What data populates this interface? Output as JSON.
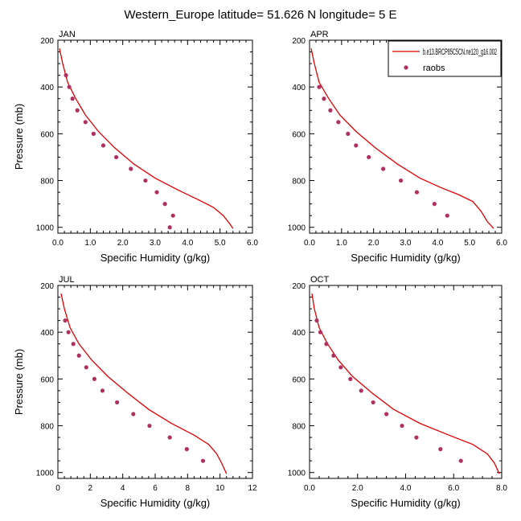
{
  "figure": {
    "title": "Western_Europe  latitude= 51.626 N longitude= 5 E"
  },
  "colors": {
    "model": "#e00000",
    "obs": "#b03060",
    "axis": "#000000"
  },
  "legend": {
    "location": "top-right of APR panel",
    "model_label": "b.e13.BRCP85C5CN.ne120_g16.002",
    "obs_label": "raobs"
  },
  "chart_data": [
    {
      "type": "line",
      "panel": "JAN",
      "title": "JAN",
      "xlabel": "Specific Humidity (g/kg)",
      "ylabel": "Pressure (mb)",
      "xlim": [
        0,
        6
      ],
      "ylim": [
        200,
        1025
      ],
      "y_reversed": true,
      "xticks": [
        "0.0",
        "1.0",
        "2.0",
        "3.0",
        "4.0",
        "5.0",
        "6.0"
      ],
      "yticks": [
        "200",
        "400",
        "600",
        "800",
        "1000"
      ],
      "series": [
        {
          "name": "b.e13.BRCP85C5CN.ne120_g16.002",
          "kind": "line",
          "x": [
            0.05,
            0.15,
            0.3,
            0.55,
            0.85,
            1.25,
            1.75,
            2.35,
            3.0,
            3.7,
            4.3,
            4.8,
            5.1,
            5.3,
            5.4
          ],
          "y": [
            235,
            300,
            380,
            450,
            520,
            590,
            660,
            730,
            790,
            840,
            880,
            915,
            950,
            985,
            1005
          ]
        },
        {
          "name": "raobs",
          "kind": "points",
          "x": [
            0.25,
            0.35,
            0.45,
            0.6,
            0.85,
            1.1,
            1.4,
            1.8,
            2.25,
            2.7,
            3.05,
            3.3,
            3.55,
            3.45
          ],
          "y": [
            350,
            400,
            450,
            500,
            550,
            600,
            650,
            700,
            750,
            800,
            850,
            900,
            950,
            1000
          ]
        }
      ]
    },
    {
      "type": "line",
      "panel": "APR",
      "title": "APR",
      "xlabel": "Specific Humidity (g/kg)",
      "ylabel": "Pressure (mb)",
      "xlim": [
        0,
        6
      ],
      "ylim": [
        200,
        1025
      ],
      "y_reversed": true,
      "xticks": [
        "0.0",
        "1.0",
        "2.0",
        "3.0",
        "4.0",
        "5.0",
        "6.0"
      ],
      "yticks": [
        "200",
        "400",
        "600",
        "800",
        "1000"
      ],
      "series": [
        {
          "name": "b.e13.BRCP85C5CN.ne120_g16.002",
          "kind": "line",
          "x": [
            0.05,
            0.15,
            0.3,
            0.6,
            0.95,
            1.45,
            2.05,
            2.75,
            3.45,
            4.1,
            4.65,
            5.1,
            5.35,
            5.55,
            5.75
          ],
          "y": [
            235,
            300,
            380,
            450,
            520,
            590,
            660,
            730,
            790,
            830,
            860,
            890,
            930,
            975,
            1005
          ]
        },
        {
          "name": "raobs",
          "kind": "points",
          "x": [
            0.3,
            0.45,
            0.65,
            0.9,
            1.2,
            1.45,
            1.85,
            2.3,
            2.85,
            3.35,
            3.9,
            4.3
          ],
          "y": [
            400,
            450,
            500,
            550,
            600,
            650,
            700,
            750,
            800,
            850,
            900,
            950
          ]
        }
      ]
    },
    {
      "type": "line",
      "panel": "JUL",
      "title": "JUL",
      "xlabel": "Specific Humidity (g/kg)",
      "ylabel": "Pressure (mb)",
      "xlim": [
        0,
        12
      ],
      "ylim": [
        200,
        1025
      ],
      "y_reversed": true,
      "xticks": [
        "0",
        "2",
        "4",
        "6",
        "8",
        "10",
        "12"
      ],
      "yticks": [
        "200",
        "400",
        "600",
        "800",
        "1000"
      ],
      "series": [
        {
          "name": "b.e13.BRCP85C5CN.ne120_g16.002",
          "kind": "line",
          "x": [
            0.2,
            0.4,
            0.75,
            1.3,
            2.1,
            3.1,
            4.3,
            5.6,
            7.0,
            8.4,
            9.3,
            9.8,
            10.1,
            10.4
          ],
          "y": [
            235,
            300,
            380,
            450,
            520,
            590,
            660,
            730,
            790,
            840,
            880,
            920,
            960,
            1005
          ]
        },
        {
          "name": "raobs",
          "kind": "points",
          "x": [
            0.45,
            0.65,
            0.95,
            1.3,
            1.75,
            2.25,
            2.75,
            3.65,
            4.65,
            5.65,
            6.9,
            7.95,
            8.95
          ],
          "y": [
            350,
            400,
            450,
            500,
            550,
            600,
            650,
            700,
            750,
            800,
            850,
            900,
            950
          ]
        }
      ]
    },
    {
      "type": "line",
      "panel": "OCT",
      "title": "OCT",
      "xlabel": "Specific Humidity (g/kg)",
      "ylabel": "Pressure (mb)",
      "xlim": [
        0,
        8
      ],
      "ylim": [
        200,
        1025
      ],
      "y_reversed": true,
      "xticks": [
        "0.0",
        "2.0",
        "4.0",
        "6.0",
        "8.0"
      ],
      "yticks": [
        "200",
        "400",
        "600",
        "800",
        "1000"
      ],
      "series": [
        {
          "name": "b.e13.BRCP85C5CN.ne120_g16.002",
          "kind": "line",
          "x": [
            0.1,
            0.2,
            0.4,
            0.75,
            1.2,
            1.8,
            2.6,
            3.5,
            4.6,
            5.8,
            6.8,
            7.4,
            7.7,
            7.9
          ],
          "y": [
            235,
            300,
            380,
            450,
            520,
            590,
            660,
            730,
            790,
            840,
            880,
            920,
            960,
            1005
          ]
        },
        {
          "name": "raobs",
          "kind": "points",
          "x": [
            0.3,
            0.45,
            0.7,
            1.0,
            1.3,
            1.7,
            2.15,
            2.65,
            3.2,
            3.85,
            4.45,
            5.45,
            6.3
          ],
          "y": [
            350,
            400,
            450,
            500,
            550,
            600,
            650,
            700,
            750,
            800,
            850,
            900,
            950
          ]
        }
      ]
    }
  ]
}
